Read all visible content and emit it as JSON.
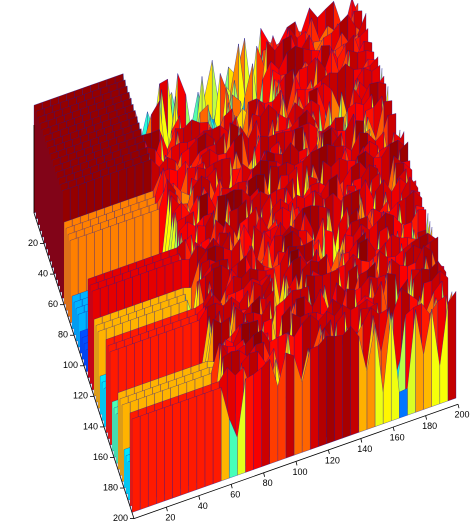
{
  "chart_data": {
    "type": "surface",
    "xlim": [
      0,
      200
    ],
    "xticks": [
      20,
      40,
      60,
      80,
      100,
      120,
      140,
      160,
      180,
      200
    ],
    "ylim": [
      0,
      200
    ],
    "yticks": [
      20,
      40,
      60,
      80,
      100,
      120,
      140,
      160,
      180,
      200
    ]
  }
}
